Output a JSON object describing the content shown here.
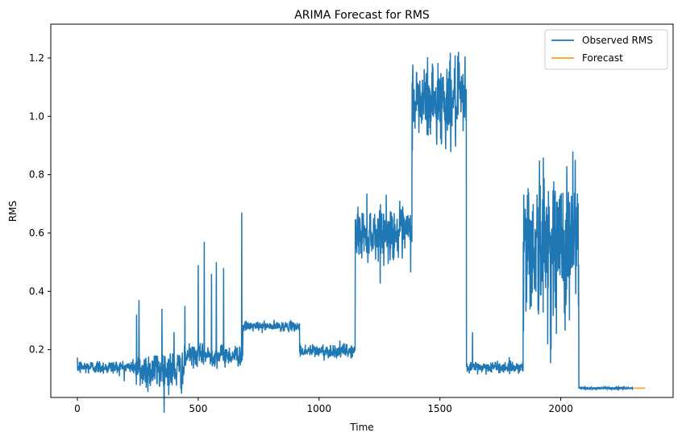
{
  "chart_data": {
    "type": "line",
    "title": "ARIMA Forecast for RMS",
    "xlabel": "Time",
    "ylabel": "RMS",
    "xlim": [
      -110,
      2465
    ],
    "ylim": [
      0.036,
      1.316
    ],
    "xticks": [
      0,
      500,
      1000,
      1500,
      2000
    ],
    "yticks": [
      0.2,
      0.4,
      0.6,
      0.8,
      1.0,
      1.2
    ],
    "xtick_labels": [
      "0",
      "500",
      "1000",
      "1500",
      "2000"
    ],
    "ytick_labels": [
      "0.2",
      "0.4",
      "0.6",
      "0.8",
      "1.0",
      "1.2"
    ],
    "grid": false,
    "legend_position": "top-right",
    "series": [
      {
        "name": "Observed RMS",
        "color": "#1f77b4",
        "style": "noisy-segments",
        "segments": [
          {
            "x": [
              0,
              240
            ],
            "base": 0.14,
            "noise": 0.012
          },
          {
            "x": [
              240,
              450
            ],
            "base": 0.13,
            "noise": 0.035
          },
          {
            "x": [
              450,
              685
            ],
            "base": 0.18,
            "noise": 0.018
          },
          {
            "x": [
              685,
              920
            ],
            "base": 0.28,
            "noise": 0.008
          },
          {
            "x": [
              920,
              1150
            ],
            "base": 0.195,
            "noise": 0.012
          },
          {
            "x": [
              1150,
              1385
            ],
            "base": 0.6,
            "noise": 0.045
          },
          {
            "x": [
              1385,
              1610
            ],
            "base": 1.05,
            "noise": 0.07
          },
          {
            "x": [
              1610,
              1845
            ],
            "base": 0.14,
            "noise": 0.01
          },
          {
            "x": [
              1845,
              2075
            ],
            "base": 0.56,
            "noise": 0.13
          },
          {
            "x": [
              2075,
              2300
            ],
            "base": 0.068,
            "noise": 0.002
          }
        ],
        "spikes": [
          {
            "x": 245,
            "y": 0.32
          },
          {
            "x": 255,
            "y": 0.37
          },
          {
            "x": 350,
            "y": 0.34
          },
          {
            "x": 400,
            "y": 0.26
          },
          {
            "x": 445,
            "y": 0.35
          },
          {
            "x": 500,
            "y": 0.49
          },
          {
            "x": 525,
            "y": 0.57
          },
          {
            "x": 555,
            "y": 0.46
          },
          {
            "x": 575,
            "y": 0.5
          },
          {
            "x": 605,
            "y": 0.48
          },
          {
            "x": 680,
            "y": 0.67
          },
          {
            "x": 1635,
            "y": 0.26
          },
          {
            "x": 2050,
            "y": 0.88
          },
          {
            "x": 2060,
            "y": 0.85
          }
        ]
      },
      {
        "name": "Forecast",
        "color": "#ff9f1c",
        "x": [
          2300,
          2350
        ],
        "y": [
          0.068,
          0.068
        ]
      }
    ]
  }
}
